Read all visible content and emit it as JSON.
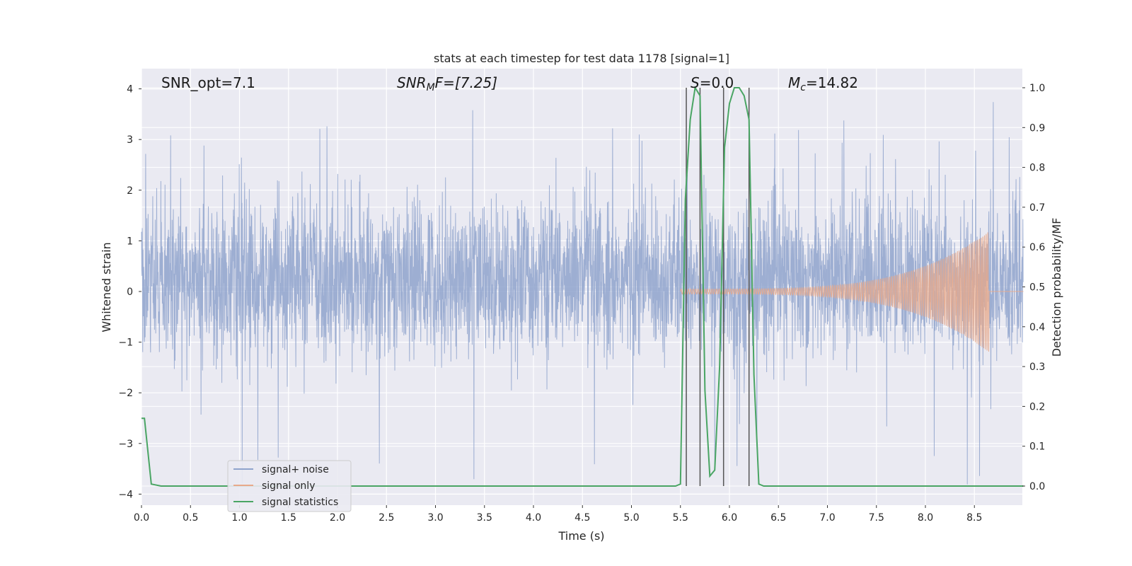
{
  "chart_data": {
    "type": "line",
    "title": "stats at each timestep for test data 1178 [signal=1]",
    "xlabel": "Time (s)",
    "ylabel_left": "Whitened strain",
    "ylabel_right": "Detection probability/MF",
    "xlim": [
      0,
      9
    ],
    "ylim_left": [
      -4.2,
      4.4
    ],
    "ylim_right": [
      -0.05,
      1.05
    ],
    "x_ticks": [
      "0.0",
      "0.5",
      "1.0",
      "1.5",
      "2.0",
      "2.5",
      "3.0",
      "3.5",
      "4.0",
      "4.5",
      "5.0",
      "5.5",
      "6.0",
      "6.5",
      "7.0",
      "7.5",
      "8.0",
      "8.5"
    ],
    "y_ticks_left": [
      "4",
      "3",
      "2",
      "1",
      "0",
      "−1",
      "−2",
      "−3",
      "−4"
    ],
    "y_ticks_right": [
      "1.0",
      "0.9",
      "0.8",
      "0.7",
      "0.6",
      "0.5",
      "0.4",
      "0.3",
      "0.2",
      "0.1",
      "0.0"
    ],
    "grid": true,
    "annotations": {
      "snr_opt": "SNR_opt=7.1",
      "snr_mf_label": "SNR",
      "snr_mf_sub": "M",
      "snr_mf_rest": "F=[7.25]",
      "s_label": "S",
      "s_rest": "=0.0",
      "mc_label": "M",
      "mc_sub": "c",
      "mc_rest": "=14.82"
    },
    "vertical_lines_x": [
      5.56,
      5.7,
      5.94,
      6.2
    ],
    "legend": {
      "placement": "lower-left",
      "entries": [
        "signal+ noise",
        "signal only",
        "signal statistics"
      ]
    },
    "series": [
      {
        "name": "signal+ noise",
        "color": "#8fa3cc",
        "axis": "left",
        "description_values": {
          "typical_range": [
            -1.5,
            2.2
          ],
          "max_spike": 4.0,
          "min_spike": -3.9,
          "sample_rate_hz": 400
        }
      },
      {
        "name": "signal only",
        "color": "#e8a98a",
        "axis": "left",
        "x_start": 5.5,
        "x_peak": 8.65,
        "amp_start": 0.05,
        "amp_peak": 1.2
      },
      {
        "name": "signal statistics",
        "color": "#4aa564",
        "axis": "right",
        "x": [
          0.0,
          0.03,
          0.1,
          0.2,
          0.5,
          1.0,
          2.0,
          3.0,
          4.0,
          5.0,
          5.45,
          5.5,
          5.55,
          5.6,
          5.65,
          5.7,
          5.75,
          5.8,
          5.85,
          5.9,
          5.95,
          6.0,
          6.05,
          6.1,
          6.15,
          6.2,
          6.25,
          6.3,
          6.35,
          6.5,
          7.0,
          8.0,
          9.0
        ],
        "y": [
          0.17,
          0.17,
          0.005,
          0.0,
          0.0,
          0.0,
          0.0,
          0.0,
          0.0,
          0.0,
          0.0,
          0.005,
          0.72,
          0.92,
          1.0,
          0.98,
          0.24,
          0.025,
          0.04,
          0.3,
          0.85,
          0.96,
          1.0,
          1.0,
          0.98,
          0.92,
          0.28,
          0.005,
          0.0,
          0.0,
          0.0,
          0.0,
          0.0
        ]
      }
    ]
  }
}
